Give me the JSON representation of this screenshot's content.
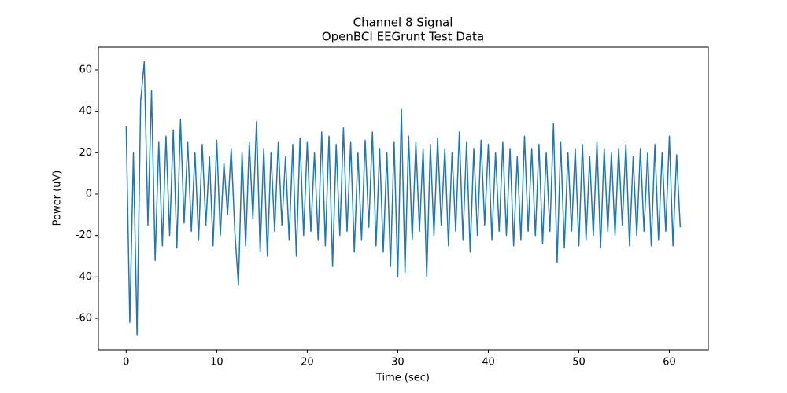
{
  "chart_data": {
    "type": "line",
    "title": "Channel 8 Signal",
    "subtitle": "OpenBCI EEGrunt Test Data",
    "x_label": "Time (sec)",
    "y_label": "Power (uV)",
    "xlim": [
      -3.07,
      64.3
    ],
    "ylim": [
      -75.2,
      71.0
    ],
    "xticks": [
      0,
      10,
      20,
      30,
      40,
      50,
      60
    ],
    "yticks": [
      -60,
      -40,
      -20,
      0,
      20,
      40,
      60
    ],
    "grid": false,
    "x": [
      0,
      0.4,
      0.8,
      1.2,
      1.6,
      2,
      2.4,
      2.8,
      3.2,
      3.6,
      4,
      4.4,
      4.8,
      5.2,
      5.6,
      6,
      6.4,
      6.8,
      7.2,
      7.6,
      8,
      8.4,
      8.8,
      9.2,
      9.6,
      10,
      10.4,
      10.8,
      11.2,
      11.6,
      12,
      12.4,
      12.8,
      13.2,
      13.6,
      14,
      14.4,
      14.8,
      15.2,
      15.6,
      16,
      16.4,
      16.8,
      17.2,
      17.6,
      18,
      18.4,
      18.8,
      19.2,
      19.6,
      20,
      20.4,
      20.8,
      21.2,
      21.6,
      22,
      22.4,
      22.8,
      23.2,
      23.6,
      24,
      24.4,
      24.8,
      25.2,
      25.6,
      26,
      26.4,
      26.8,
      27.2,
      27.6,
      28,
      28.4,
      28.8,
      29.2,
      29.6,
      30,
      30.4,
      30.8,
      31.2,
      31.6,
      32,
      32.4,
      32.8,
      33.2,
      33.6,
      34,
      34.4,
      34.8,
      35.2,
      35.6,
      36,
      36.4,
      36.8,
      37.2,
      37.6,
      38,
      38.4,
      38.8,
      39.2,
      39.6,
      40,
      40.4,
      40.8,
      41.2,
      41.6,
      42,
      42.4,
      42.8,
      43.2,
      43.6,
      44,
      44.4,
      44.8,
      45.2,
      45.6,
      46,
      46.4,
      46.8,
      47.2,
      47.6,
      48,
      48.4,
      48.8,
      49.2,
      49.6,
      50,
      50.4,
      50.8,
      51.2,
      51.6,
      52,
      52.4,
      52.8,
      53.2,
      53.6,
      54,
      54.4,
      54.8,
      55.2,
      55.6,
      56,
      56.4,
      56.8,
      57.2,
      57.6,
      58,
      58.4,
      58.8,
      59.2,
      59.6,
      60,
      60.4,
      60.8,
      61.2
    ],
    "series": [
      {
        "name": "Channel 8",
        "color": "#1f77b4",
        "values": [
          33,
          -62,
          20,
          -68,
          45,
          64,
          -15,
          50,
          -32,
          25,
          -25,
          28,
          -20,
          31,
          -26,
          36,
          -14,
          25,
          -18,
          20,
          -22,
          24,
          -15,
          18,
          -25,
          26,
          -20,
          15,
          -10,
          22,
          -18,
          -44,
          20,
          -25,
          25,
          -12,
          35,
          -28,
          22,
          -30,
          20,
          -18,
          25,
          -15,
          18,
          -22,
          24,
          -30,
          27,
          -20,
          25,
          -18,
          20,
          -22,
          30,
          -25,
          28,
          -35,
          24,
          -20,
          32,
          -18,
          25,
          -28,
          20,
          -22,
          26,
          -16,
          30,
          -25,
          22,
          -28,
          20,
          -35,
          25,
          -40,
          41,
          -38,
          28,
          -22,
          25,
          -18,
          22,
          -40,
          24,
          -20,
          27,
          -15,
          22,
          -25,
          20,
          -18,
          30,
          -22,
          25,
          -28,
          22,
          -20,
          26,
          -15,
          24,
          -22,
          20,
          -18,
          25,
          -20,
          22,
          -25,
          18,
          -22,
          28,
          -18,
          22,
          -20,
          24,
          -24,
          20,
          -18,
          34,
          -33,
          25,
          -26,
          20,
          -18,
          22,
          -25,
          24,
          -22,
          18,
          -20,
          25,
          -26,
          22,
          -18,
          20,
          -20,
          22,
          -15,
          24,
          -25,
          18,
          -20,
          22,
          -18,
          20,
          -25,
          24,
          -22,
          20,
          -18,
          28,
          -25,
          19,
          -16
        ]
      }
    ]
  }
}
